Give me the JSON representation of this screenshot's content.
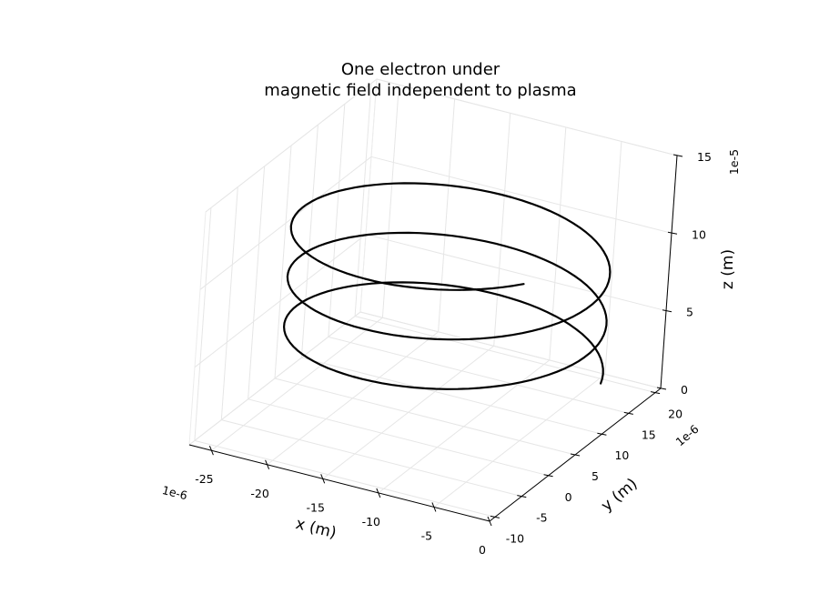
{
  "chart_data": {
    "type": "line",
    "projection": "3d",
    "title": "One electron under\nmagnetic field independent to plasma",
    "title_lines": [
      "One electron under",
      "magnetic field independent to plasma"
    ],
    "xlabel": "x (m)",
    "ylabel": "y (m)",
    "zlabel": "z (m)",
    "x_offset": "1e-6",
    "y_offset": "1e-6",
    "z_offset": "1e-5",
    "xlim": [
      -27,
      0
    ],
    "ylim": [
      -11,
      21
    ],
    "zlim": [
      0,
      15
    ],
    "x_ticks": [
      -25,
      -20,
      -15,
      -10,
      -5,
      0
    ],
    "y_ticks": [
      -10,
      -5,
      0,
      5,
      10,
      15,
      20
    ],
    "z_ticks": [
      0,
      5,
      10,
      15
    ],
    "x_tick_labels": [
      "-25",
      "-20",
      "-15",
      "-10",
      "-5",
      "0"
    ],
    "y_tick_labels": [
      "-10",
      "-5",
      "0",
      "5",
      "10",
      "15",
      "20"
    ],
    "z_tick_labels": [
      "0",
      "5",
      "10",
      "15"
    ],
    "grid": true,
    "series": [
      {
        "color": "#000000",
        "helix": {
          "center_x": -12.5,
          "center_y": 5.5,
          "radius": 13,
          "z_start": 3.5,
          "z_end": 12.6,
          "turns": 2.85,
          "start_phase_deg": 16,
          "points": 260
        }
      }
    ]
  }
}
